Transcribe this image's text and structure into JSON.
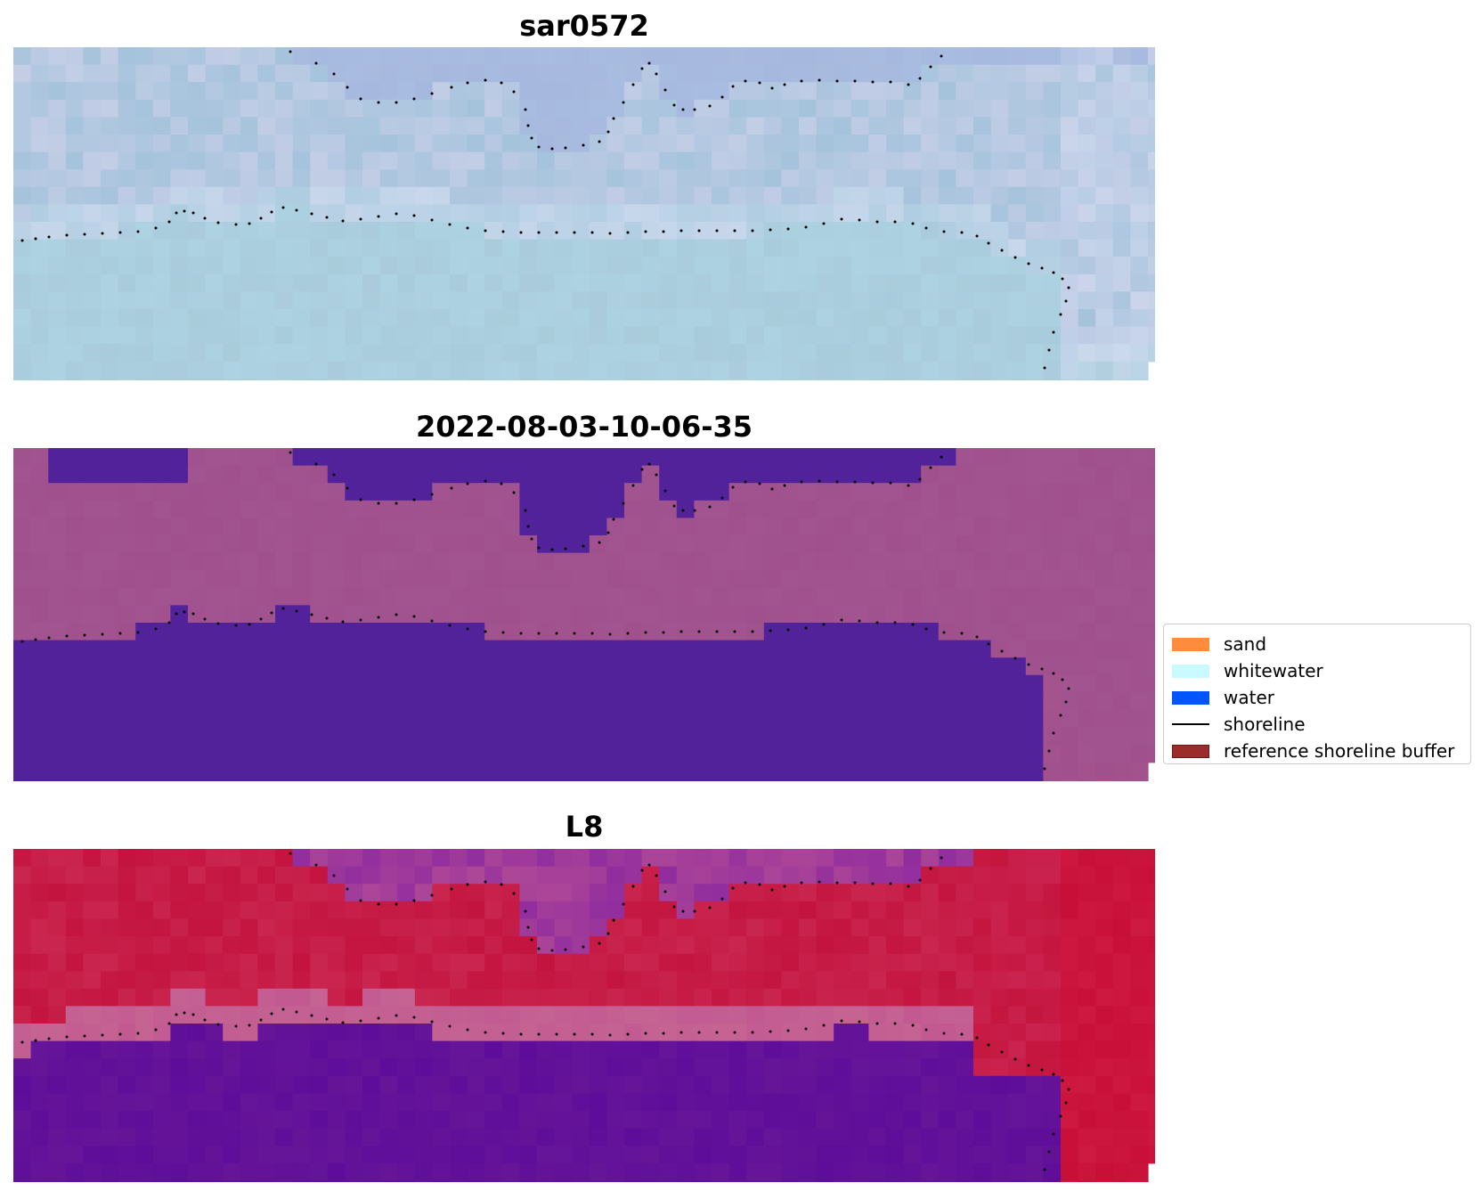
{
  "panels": [
    {
      "title": "sar0572",
      "style": "rgb"
    },
    {
      "title": "2022-08-03-10-06-35",
      "style": "classified"
    },
    {
      "title": "L8",
      "style": "index"
    }
  ],
  "legend": {
    "items": [
      {
        "label": "sand",
        "color": "#ff8c3c",
        "kind": "patch"
      },
      {
        "label": "whitewater",
        "color": "#c8faff",
        "kind": "patch"
      },
      {
        "label": "water",
        "color": "#0055ff",
        "kind": "patch"
      },
      {
        "label": "shoreline",
        "color": "#000000",
        "kind": "line"
      },
      {
        "label": "reference shoreline buffer",
        "color": "#9b2c2c",
        "kind": "patch"
      }
    ]
  },
  "colors": {
    "rgb_base": "#a9cbdb",
    "rgb_offshore": "#a6b8de",
    "class_water": "#51229a",
    "class_land": "#a0518d",
    "index_high": "#c3143f",
    "index_low": "#5e0d9a",
    "index_mid": "#c25a91",
    "shoreline_dots": "#000000"
  }
}
